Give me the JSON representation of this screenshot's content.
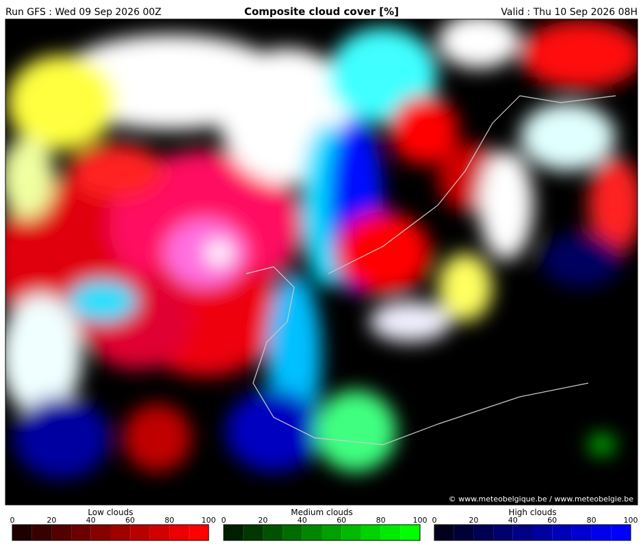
{
  "header": {
    "run": "Run GFS : Wed 09 Sep 2026 00Z",
    "title": "Composite cloud cover [%]",
    "valid": "Valid : Thu 10 Sep 2026 08H"
  },
  "copyright": "© www.meteobelgique.be / www.meteobelgie.be",
  "legends": [
    {
      "title": "Low clouds",
      "ticks": [
        0,
        20,
        40,
        60,
        80,
        100
      ],
      "colors": [
        "#1e0000",
        "#380000",
        "#520000",
        "#6c0000",
        "#860000",
        "#a00000",
        "#b90000",
        "#d20000",
        "#ea0000",
        "#ff0000"
      ]
    },
    {
      "title": "Medium clouds",
      "ticks": [
        0,
        20,
        40,
        60,
        80,
        100
      ],
      "colors": [
        "#001e00",
        "#003800",
        "#005200",
        "#006c00",
        "#008600",
        "#00a000",
        "#00b900",
        "#00d200",
        "#00ea00",
        "#00ff00"
      ]
    },
    {
      "title": "High clouds",
      "ticks": [
        0,
        20,
        40,
        60,
        80,
        100
      ],
      "colors": [
        "#00001e",
        "#000038",
        "#000052",
        "#00006c",
        "#000086",
        "#0000a0",
        "#0000b9",
        "#0000d2",
        "#0000ea",
        "#0000ff"
      ]
    }
  ]
}
